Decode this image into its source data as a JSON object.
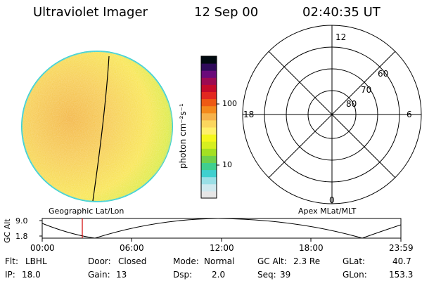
{
  "header": {
    "instrument": "Ultraviolet Imager",
    "date": "12 Sep 00",
    "time": "02:40:35 UT"
  },
  "colorbar": {
    "unit_label": "photon cm⁻²s⁻¹",
    "ticks": [
      {
        "label": "100",
        "value": 100
      },
      {
        "label": "10",
        "value": 10
      }
    ],
    "colors": [
      "#e6e6e6",
      "#cfe9ef",
      "#9adfe6",
      "#3fd0cf",
      "#40cf8f",
      "#6fd14c",
      "#a4e022",
      "#d6ef1f",
      "#f4f71c",
      "#fff06a",
      "#fbd65e",
      "#f6b24a",
      "#f48a1c",
      "#ee5a14",
      "#e22820",
      "#c40a2a",
      "#9c0a52",
      "#6a0a7a",
      "#2e0a5a",
      "#000a10"
    ]
  },
  "earth_image": {
    "labels": {
      "left": "Geographic Lat/Lon",
      "right": "Apex MLat/MLT"
    },
    "colors": {
      "rim": "#3fd0cf",
      "green": "#9bd93a",
      "yellow": "#f8e44a",
      "orange": "#f2b23a"
    }
  },
  "polar_plot": {
    "mlt_labels": {
      "top": "12",
      "left": "18",
      "right": "6",
      "bottom": "0"
    },
    "lat_labels": [
      "60",
      "70",
      "80"
    ]
  },
  "altitude_plot": {
    "ylabel": "GC Alt",
    "yticks": [
      "9.0",
      "1.8"
    ],
    "xticks": [
      "00:00",
      "06:00",
      "12:00",
      "18:00",
      "23:59"
    ],
    "marker_color": "#d00000"
  },
  "status": {
    "flt_label": "Flt:",
    "flt_value": "LBHL",
    "ip_label": "IP:",
    "ip_value": "18.0",
    "door_label": "Door:",
    "door_value": "Closed",
    "gain_label": "Gain:",
    "gain_value": "13",
    "mode_label": "Mode:",
    "mode_value": "Normal",
    "dsp_label": "Dsp:",
    "dsp_value": "2.0",
    "gcalt_label": "GC Alt:",
    "gcalt_value": "2.3 Re",
    "seq_label": "Seq:",
    "seq_value": "39",
    "glat_label": "GLat:",
    "glat_value": "40.7",
    "glon_label": "GLon:",
    "glon_value": "153.3"
  }
}
